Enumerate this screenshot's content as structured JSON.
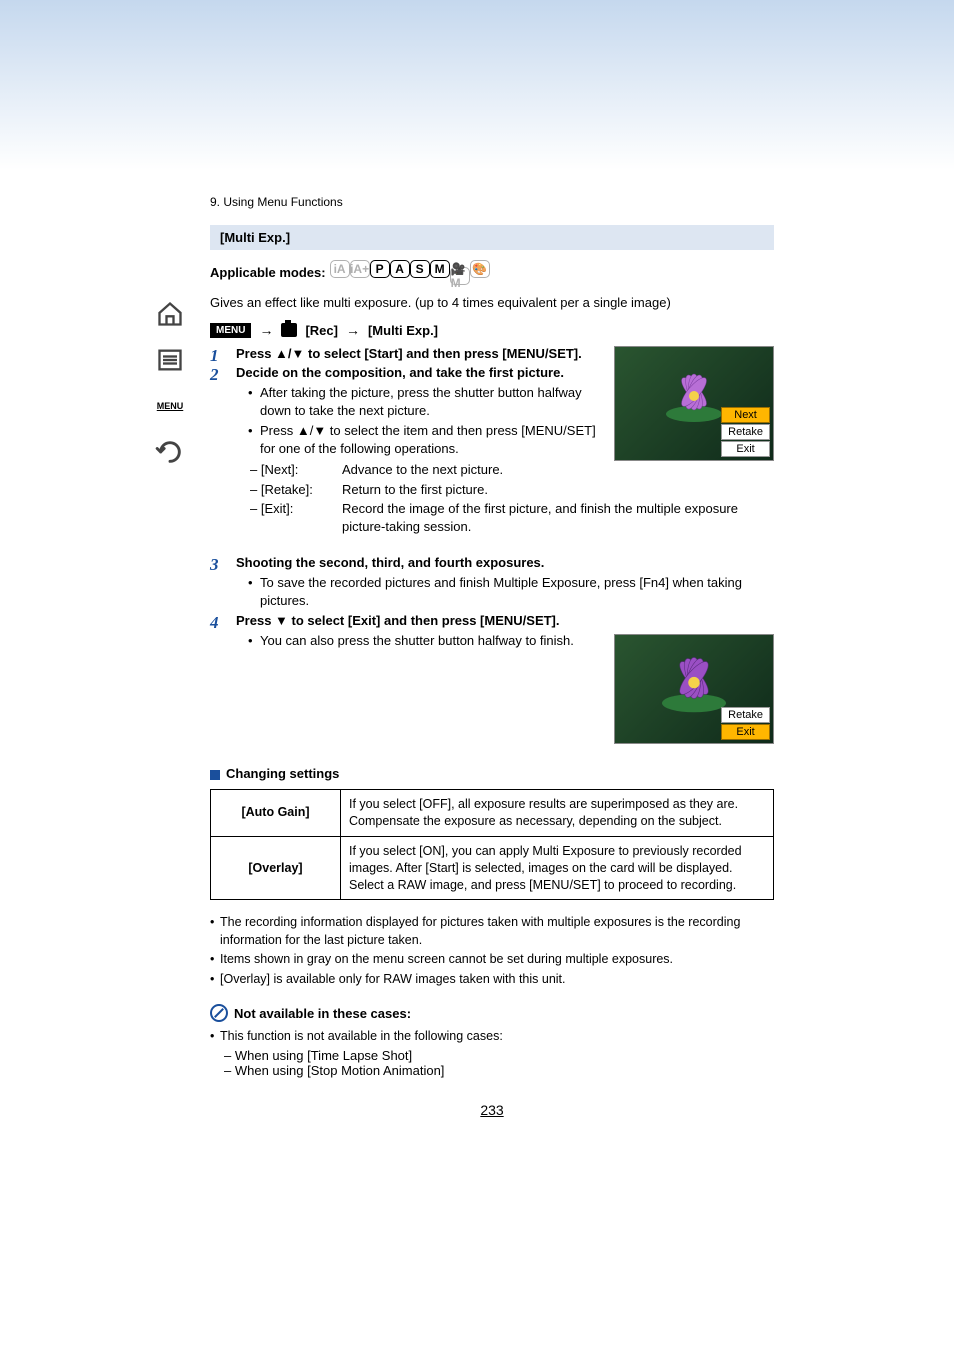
{
  "breadcrumb": "9. Using Menu Functions",
  "section_title": "[Multi Exp.]",
  "applicable_label": "Applicable modes:",
  "modes": [
    {
      "label": "iA",
      "dim": true
    },
    {
      "label": "iA+",
      "dim": true
    },
    {
      "label": "P",
      "dim": false
    },
    {
      "label": "A",
      "dim": false
    },
    {
      "label": "S",
      "dim": false
    },
    {
      "label": "M",
      "dim": false
    },
    {
      "label": "🎥M",
      "dim": true
    },
    {
      "label": "🎨",
      "dim": true
    }
  ],
  "intro": "Gives an effect like multi exposure. (up to 4 times equivalent per a single image)",
  "menu_path": {
    "menu": "MENU",
    "rec": "[Rec]",
    "item": "[Multi Exp.]"
  },
  "steps": [
    {
      "head": "Press ▲/▼ to select [Start] and then press [MENU/SET]."
    },
    {
      "head": "Decide on the composition, and take the first picture.",
      "bullets": [
        "After taking the picture, press the shutter button halfway down to take the next picture.",
        "Press ▲/▼ to select the item and then press [MENU/SET] for one of the following operations."
      ],
      "dash": [
        {
          "k": "– [Next]:",
          "v": "Advance to the next picture."
        },
        {
          "k": "– [Retake]:",
          "v": "Return to the first picture."
        },
        {
          "k": "– [Exit]:",
          "v": "Record the image of the first picture, and finish the multiple exposure picture-taking session."
        }
      ]
    },
    {
      "head": "Shooting the second, third, and fourth exposures.",
      "bullets": [
        "To save the recorded pictures and finish Multiple Exposure, press [Fn4] when taking pictures."
      ]
    },
    {
      "head": "Press ▼ to select [Exit] and then press [MENU/SET].",
      "bullets": [
        "You can also press the shutter button halfway to finish."
      ]
    }
  ],
  "preview1": {
    "opts": [
      "Next",
      "Retake",
      "Exit"
    ],
    "selected": "Next"
  },
  "preview2": {
    "opts": [
      "Retake",
      "Exit"
    ],
    "selected": "Exit"
  },
  "changing_settings_head": "Changing settings",
  "settings_table": [
    {
      "k": "[Auto Gain]",
      "v": "If you select [OFF], all exposure results are superimposed as they are. Compensate the exposure as necessary, depending on the subject."
    },
    {
      "k": "[Overlay]",
      "v": "If you select [ON], you can apply Multi Exposure to previously recorded images. After [Start] is selected, images on the card will be displayed. Select a RAW image, and press [MENU/SET] to proceed to recording."
    }
  ],
  "notes": [
    "The recording information displayed for pictures taken with multiple exposures is the recording information for the last picture taken.",
    "Items shown in gray on the menu screen cannot be set during multiple exposures.",
    "[Overlay] is available only for RAW images taken with this unit."
  ],
  "not_available_head": "Not available in these cases:",
  "not_available_intro": "This function is not available in the following cases:",
  "not_available_items": [
    "When using [Time Lapse Shot]",
    "When using [Stop Motion Animation]"
  ],
  "page_number": "233",
  "flower_colors": {
    "petal": "#b86fd6",
    "center": "#f4d24a",
    "leaf": "#2d7a3a"
  }
}
